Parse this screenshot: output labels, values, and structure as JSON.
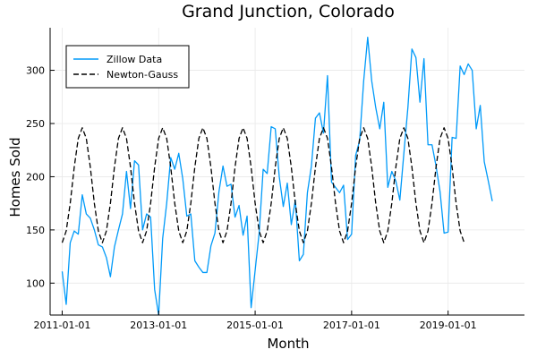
{
  "chart_data": {
    "type": "line",
    "title": "Grand Junction, Colorado",
    "xlabel": "Month",
    "ylabel": "Homes Sold",
    "x_start": "2011-01-01",
    "x_range": [
      "2010-10-01",
      "2020-08-01"
    ],
    "ylim": [
      70,
      340
    ],
    "x_ticks": [
      "2011-01-01",
      "2013-01-01",
      "2015-01-01",
      "2017-01-01",
      "2019-01-01"
    ],
    "y_ticks": [
      100,
      150,
      200,
      250,
      300
    ],
    "grid": true,
    "legend_position": "top-left",
    "series": [
      {
        "name": "Zillow Data",
        "style": "solid",
        "color": "#009af9",
        "values": [
          111,
          80,
          138,
          149,
          146,
          183,
          165,
          161,
          150,
          136,
          134,
          124,
          106,
          134,
          150,
          165,
          205,
          170,
          215,
          211,
          150,
          165,
          162,
          94,
          70,
          142,
          175,
          218,
          207,
          222,
          198,
          163,
          165,
          121,
          115,
          110,
          110,
          135,
          147,
          186,
          210,
          191,
          193,
          162,
          173,
          145,
          163,
          77,
          112,
          147,
          207,
          203,
          247,
          245,
          200,
          172,
          194,
          155,
          178,
          121,
          127,
          185,
          210,
          255,
          260,
          241,
          295,
          195,
          190,
          185,
          192,
          141,
          146,
          220,
          234,
          290,
          331,
          290,
          265,
          245,
          270,
          190,
          205,
          196,
          178,
          222,
          265,
          320,
          312,
          270,
          311,
          230,
          230,
          210,
          186,
          147,
          148,
          237,
          236,
          304,
          296,
          306,
          300,
          245,
          267,
          214,
          196,
          177
        ]
      },
      {
        "name": "Newton-Gauss",
        "style": "dashed",
        "color": "#000000",
        "values": [
          138,
          149,
          175,
          209,
          236,
          246,
          236,
          209,
          175,
          149,
          138,
          149,
          175,
          209,
          236,
          246,
          236,
          209,
          175,
          149,
          138,
          149,
          175,
          209,
          236,
          246,
          236,
          209,
          175,
          149,
          138,
          149,
          175,
          209,
          236,
          246,
          236,
          209,
          175,
          149,
          138,
          149,
          175,
          209,
          236,
          246,
          236,
          209,
          175,
          149,
          138,
          149,
          175,
          209,
          236,
          246,
          236,
          209,
          175,
          149,
          138,
          149,
          175,
          209,
          236,
          246,
          236,
          209,
          175,
          149,
          138,
          149,
          175,
          209,
          236,
          246,
          236,
          209,
          175,
          149,
          138,
          149,
          175,
          209,
          236,
          246,
          236,
          209,
          175,
          149,
          138,
          149,
          175,
          209,
          236,
          246,
          236,
          209,
          175,
          149,
          138
        ]
      }
    ]
  }
}
